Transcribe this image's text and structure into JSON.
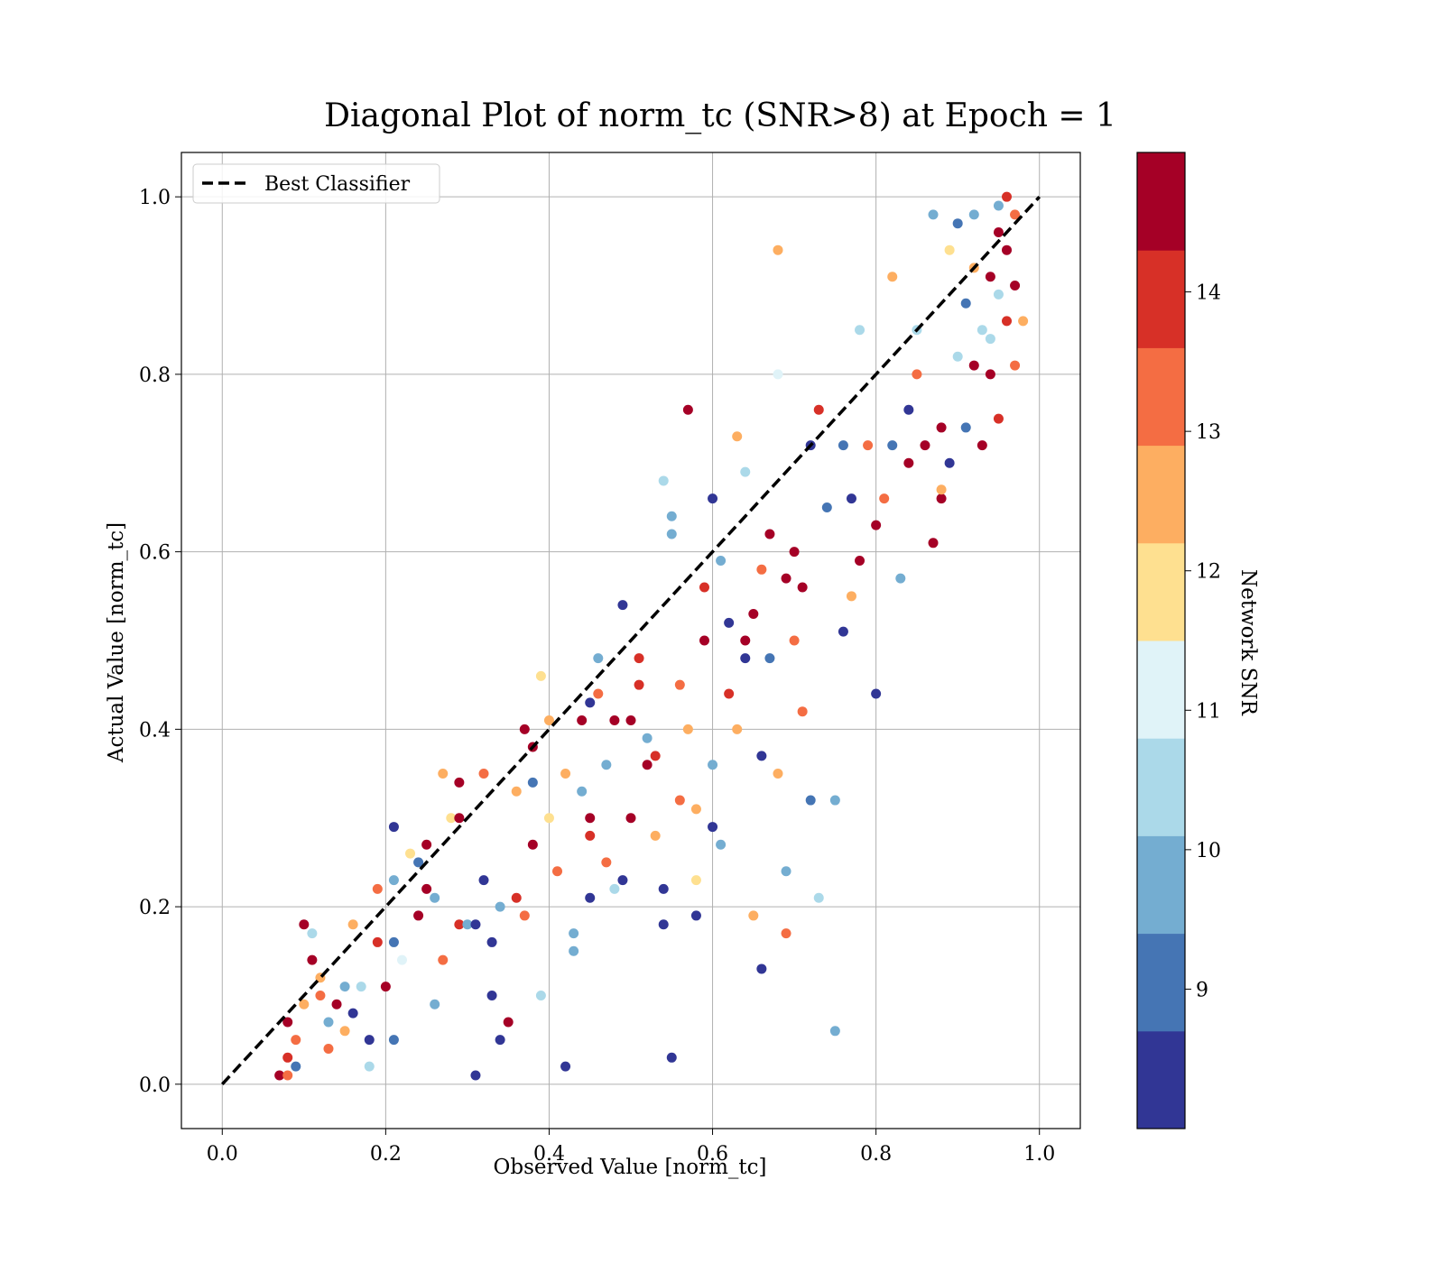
{
  "chart_data": {
    "type": "scatter",
    "title": "Diagonal Plot of norm_tc (SNR>8) at Epoch = 1",
    "xlabel": "Observed Value [norm_tc]",
    "ylabel": "Actual Value [norm_tc]",
    "xlim": [
      -0.05,
      1.05
    ],
    "ylim": [
      -0.05,
      1.05
    ],
    "xticks": [
      "0.0",
      "0.2",
      "0.4",
      "0.6",
      "0.8",
      "1.0"
    ],
    "yticks": [
      "0.0",
      "0.2",
      "0.4",
      "0.6",
      "0.8",
      "1.0"
    ],
    "grid": true,
    "legend": {
      "placement": "upper-left",
      "entries": [
        {
          "label": "Best Classifier",
          "style": "dashed",
          "color": "#000000"
        }
      ]
    },
    "reference_line": {
      "label": "Best Classifier",
      "x": [
        0.0,
        1.0
      ],
      "y": [
        0.0,
        1.0
      ]
    },
    "colorbar": {
      "label": "Network SNR",
      "range": [
        8,
        15
      ],
      "ticks": [
        "9",
        "10",
        "11",
        "12",
        "13",
        "14"
      ],
      "bins": 10,
      "colors": [
        "#313695",
        "#4575b4",
        "#74add1",
        "#abd9e9",
        "#e0f3f8",
        "#fee090",
        "#fdae61",
        "#f46d43",
        "#d73027",
        "#a50026"
      ]
    },
    "points": [
      [
        0.07,
        0.01,
        14.6
      ],
      [
        0.08,
        0.03,
        14.2
      ],
      [
        0.08,
        0.01,
        13.6
      ],
      [
        0.09,
        0.02,
        9.2
      ],
      [
        0.08,
        0.07,
        14.8
      ],
      [
        0.09,
        0.05,
        13.4
      ],
      [
        0.1,
        0.09,
        12.6
      ],
      [
        0.1,
        0.18,
        14.6
      ],
      [
        0.11,
        0.17,
        10.2
      ],
      [
        0.11,
        0.14,
        14.8
      ],
      [
        0.12,
        0.12,
        12.7
      ],
      [
        0.12,
        0.1,
        13.2
      ],
      [
        0.13,
        0.07,
        9.6
      ],
      [
        0.13,
        0.04,
        13.4
      ],
      [
        0.14,
        0.09,
        14.6
      ],
      [
        0.15,
        0.11,
        9.4
      ],
      [
        0.15,
        0.06,
        12.4
      ],
      [
        0.16,
        0.18,
        12.4
      ],
      [
        0.16,
        0.08,
        8.6
      ],
      [
        0.17,
        0.11,
        10.4
      ],
      [
        0.18,
        0.05,
        8.3
      ],
      [
        0.18,
        0.02,
        10.2
      ],
      [
        0.19,
        0.16,
        13.8
      ],
      [
        0.19,
        0.22,
        13.6
      ],
      [
        0.2,
        0.11,
        14.8
      ],
      [
        0.21,
        0.16,
        9.0
      ],
      [
        0.21,
        0.05,
        9.3
      ],
      [
        0.21,
        0.29,
        8.6
      ],
      [
        0.21,
        0.23,
        9.8
      ],
      [
        0.22,
        0.14,
        10.8
      ],
      [
        0.23,
        0.26,
        12.2
      ],
      [
        0.24,
        0.19,
        14.8
      ],
      [
        0.24,
        0.25,
        9.2
      ],
      [
        0.25,
        0.22,
        14.6
      ],
      [
        0.25,
        0.27,
        14.7
      ],
      [
        0.26,
        0.21,
        10.1
      ],
      [
        0.26,
        0.09,
        9.8
      ],
      [
        0.27,
        0.14,
        13.4
      ],
      [
        0.27,
        0.35,
        12.4
      ],
      [
        0.28,
        0.3,
        11.6
      ],
      [
        0.29,
        0.3,
        14.8
      ],
      [
        0.29,
        0.18,
        13.8
      ],
      [
        0.29,
        0.34,
        14.7
      ],
      [
        0.3,
        0.18,
        10.0
      ],
      [
        0.31,
        0.01,
        8.4
      ],
      [
        0.31,
        0.18,
        8.7
      ],
      [
        0.32,
        0.35,
        13.4
      ],
      [
        0.32,
        0.23,
        8.7
      ],
      [
        0.33,
        0.1,
        8.3
      ],
      [
        0.33,
        0.16,
        8.7
      ],
      [
        0.34,
        0.05,
        8.5
      ],
      [
        0.34,
        0.2,
        9.6
      ],
      [
        0.35,
        0.07,
        14.6
      ],
      [
        0.36,
        0.21,
        13.8
      ],
      [
        0.36,
        0.33,
        12.4
      ],
      [
        0.37,
        0.4,
        14.6
      ],
      [
        0.37,
        0.19,
        13.6
      ],
      [
        0.38,
        0.38,
        14.8
      ],
      [
        0.38,
        0.27,
        14.7
      ],
      [
        0.38,
        0.34,
        9.2
      ],
      [
        0.39,
        0.1,
        10.2
      ],
      [
        0.39,
        0.46,
        12.1
      ],
      [
        0.4,
        0.41,
        12.3
      ],
      [
        0.4,
        0.3,
        11.8
      ],
      [
        0.41,
        0.24,
        13.4
      ],
      [
        0.42,
        0.35,
        12.6
      ],
      [
        0.42,
        0.02,
        8.6
      ],
      [
        0.43,
        0.15,
        9.6
      ],
      [
        0.43,
        0.17,
        9.6
      ],
      [
        0.44,
        0.33,
        9.4
      ],
      [
        0.44,
        0.41,
        14.8
      ],
      [
        0.45,
        0.43,
        8.4
      ],
      [
        0.45,
        0.21,
        8.4
      ],
      [
        0.45,
        0.3,
        14.6
      ],
      [
        0.45,
        0.28,
        14.2
      ],
      [
        0.46,
        0.44,
        13.4
      ],
      [
        0.46,
        0.48,
        9.8
      ],
      [
        0.47,
        0.25,
        13.6
      ],
      [
        0.47,
        0.36,
        9.4
      ],
      [
        0.48,
        0.41,
        14.8
      ],
      [
        0.48,
        0.22,
        10.2
      ],
      [
        0.49,
        0.54,
        8.4
      ],
      [
        0.49,
        0.23,
        8.4
      ],
      [
        0.5,
        0.3,
        14.8
      ],
      [
        0.5,
        0.41,
        14.8
      ],
      [
        0.51,
        0.45,
        14.2
      ],
      [
        0.51,
        0.48,
        14.1
      ],
      [
        0.52,
        0.39,
        9.5
      ],
      [
        0.52,
        0.36,
        14.6
      ],
      [
        0.53,
        0.28,
        12.3
      ],
      [
        0.53,
        0.37,
        14.2
      ],
      [
        0.54,
        0.68,
        10.3
      ],
      [
        0.54,
        0.22,
        8.3
      ],
      [
        0.54,
        0.18,
        8.6
      ],
      [
        0.55,
        0.62,
        9.8
      ],
      [
        0.55,
        0.64,
        9.6
      ],
      [
        0.55,
        0.03,
        8.4
      ],
      [
        0.56,
        0.32,
        13.4
      ],
      [
        0.56,
        0.45,
        13.2
      ],
      [
        0.57,
        0.76,
        14.8
      ],
      [
        0.57,
        0.4,
        12.4
      ],
      [
        0.58,
        0.19,
        8.6
      ],
      [
        0.58,
        0.31,
        12.6
      ],
      [
        0.58,
        0.23,
        12.2
      ],
      [
        0.59,
        0.5,
        14.8
      ],
      [
        0.59,
        0.56,
        13.8
      ],
      [
        0.6,
        0.66,
        8.6
      ],
      [
        0.6,
        0.29,
        8.4
      ],
      [
        0.6,
        0.36,
        9.4
      ],
      [
        0.61,
        0.27,
        9.8
      ],
      [
        0.61,
        0.59,
        9.4
      ],
      [
        0.62,
        0.52,
        8.6
      ],
      [
        0.62,
        0.44,
        14.2
      ],
      [
        0.63,
        0.4,
        12.4
      ],
      [
        0.63,
        0.73,
        12.6
      ],
      [
        0.64,
        0.69,
        10.4
      ],
      [
        0.64,
        0.48,
        8.6
      ],
      [
        0.64,
        0.5,
        14.6
      ],
      [
        0.65,
        0.53,
        14.8
      ],
      [
        0.65,
        0.19,
        12.6
      ],
      [
        0.66,
        0.58,
        13.6
      ],
      [
        0.66,
        0.37,
        8.6
      ],
      [
        0.66,
        0.13,
        8.4
      ],
      [
        0.67,
        0.62,
        14.4
      ],
      [
        0.67,
        0.48,
        9.2
      ],
      [
        0.68,
        0.8,
        11.4
      ],
      [
        0.68,
        0.94,
        12.6
      ],
      [
        0.68,
        0.35,
        12.4
      ],
      [
        0.69,
        0.57,
        14.4
      ],
      [
        0.69,
        0.24,
        9.8
      ],
      [
        0.69,
        0.17,
        13.4
      ],
      [
        0.7,
        0.6,
        14.8
      ],
      [
        0.7,
        0.5,
        13.2
      ],
      [
        0.71,
        0.56,
        14.6
      ],
      [
        0.71,
        0.42,
        13.6
      ],
      [
        0.72,
        0.32,
        8.8
      ],
      [
        0.72,
        0.72,
        8.4
      ],
      [
        0.73,
        0.76,
        13.8
      ],
      [
        0.73,
        0.21,
        10.2
      ],
      [
        0.74,
        0.65,
        9.3
      ],
      [
        0.75,
        0.32,
        9.4
      ],
      [
        0.75,
        0.06,
        9.4
      ],
      [
        0.76,
        0.72,
        9.2
      ],
      [
        0.76,
        0.51,
        8.4
      ],
      [
        0.77,
        0.66,
        8.4
      ],
      [
        0.77,
        0.55,
        12.4
      ],
      [
        0.78,
        0.85,
        10.4
      ],
      [
        0.78,
        0.59,
        14.8
      ],
      [
        0.79,
        0.72,
        13.2
      ],
      [
        0.8,
        0.63,
        14.8
      ],
      [
        0.8,
        0.44,
        8.6
      ],
      [
        0.81,
        0.66,
        13.6
      ],
      [
        0.82,
        0.72,
        9.0
      ],
      [
        0.82,
        0.91,
        12.6
      ],
      [
        0.83,
        0.57,
        9.6
      ],
      [
        0.84,
        0.76,
        8.6
      ],
      [
        0.84,
        0.7,
        14.6
      ],
      [
        0.85,
        0.85,
        10.2
      ],
      [
        0.85,
        0.8,
        13.4
      ],
      [
        0.86,
        0.72,
        14.4
      ],
      [
        0.87,
        0.98,
        9.4
      ],
      [
        0.87,
        0.61,
        14.8
      ],
      [
        0.88,
        0.66,
        14.8
      ],
      [
        0.88,
        0.74,
        14.6
      ],
      [
        0.89,
        0.94,
        12.2
      ],
      [
        0.89,
        0.7,
        8.6
      ],
      [
        0.9,
        0.97,
        9.2
      ],
      [
        0.9,
        0.82,
        10.4
      ],
      [
        0.91,
        0.88,
        9.2
      ],
      [
        0.91,
        0.74,
        9.2
      ],
      [
        0.92,
        0.81,
        14.6
      ],
      [
        0.92,
        0.98,
        9.6
      ],
      [
        0.93,
        0.72,
        14.8
      ],
      [
        0.93,
        0.85,
        10.2
      ],
      [
        0.94,
        0.91,
        14.6
      ],
      [
        0.94,
        0.8,
        14.6
      ],
      [
        0.95,
        0.99,
        9.4
      ],
      [
        0.95,
        0.75,
        14.2
      ],
      [
        0.95,
        0.89,
        10.6
      ],
      [
        0.96,
        1.0,
        13.8
      ],
      [
        0.96,
        0.86,
        13.8
      ],
      [
        0.96,
        0.94,
        14.8
      ],
      [
        0.97,
        0.9,
        14.8
      ],
      [
        0.97,
        0.98,
        13.4
      ],
      [
        0.97,
        0.81,
        13.4
      ],
      [
        0.98,
        0.86,
        12.6
      ],
      [
        0.88,
        0.67,
        12.4
      ],
      [
        0.92,
        0.92,
        12.8
      ],
      [
        0.94,
        0.84,
        10.2
      ],
      [
        0.95,
        0.96,
        14.6
      ]
    ]
  }
}
